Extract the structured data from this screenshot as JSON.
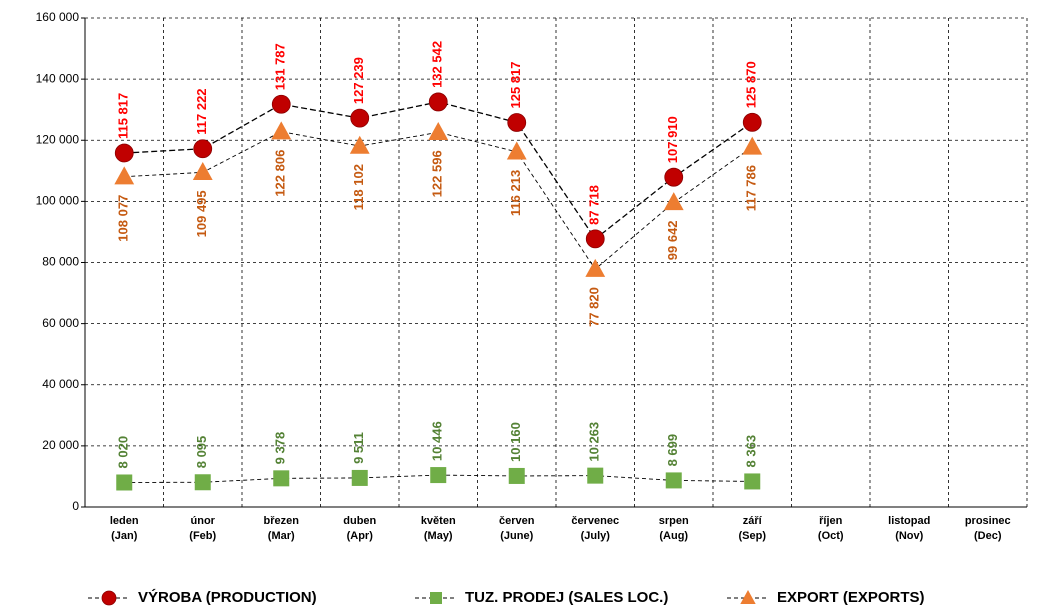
{
  "chart_data": {
    "type": "line",
    "categories": [
      "leden (Jan)",
      "únor (Feb)",
      "březen (Mar)",
      "duben (Apr)",
      "květen (May)",
      "červen (June)",
      "červenec (July)",
      "srpen (Aug)",
      "září (Sep)",
      "říjen (Oct)",
      "listopad (Nov)",
      "prosinec (Dec)"
    ],
    "series": [
      {
        "name": "VÝROBA (PRODUCTION)",
        "color": "#c00000",
        "marker": "circle",
        "values": [
          115817,
          117222,
          131787,
          127239,
          132542,
          125817,
          87718,
          107910,
          125870,
          null,
          null,
          null
        ],
        "value_labels": [
          "115 817",
          "117 222",
          "131 787",
          "127 239",
          "132 542",
          "125 817",
          "87 718",
          "107 910",
          "125 870",
          null,
          null,
          null
        ]
      },
      {
        "name": "TUZ. PRODEJ (SALES LOC.)",
        "color": "#70ad47",
        "marker": "square",
        "values": [
          8020,
          8095,
          9378,
          9511,
          10446,
          10160,
          10263,
          8699,
          8363,
          null,
          null,
          null
        ],
        "value_labels": [
          "8 020",
          "8 095",
          "9 378",
          "9 511",
          "10 446",
          "10 160",
          "10 263",
          "8 699",
          "8 363",
          null,
          null,
          null
        ]
      },
      {
        "name": "EXPORT (EXPORTS)",
        "color": "#ed7d31",
        "marker": "triangle",
        "values": [
          108077,
          109495,
          122806,
          118102,
          122596,
          116213,
          77820,
          99642,
          117786,
          null,
          null,
          null
        ],
        "value_labels": [
          "108 077",
          "109 495",
          "122 806",
          "118 102",
          "122 596",
          "116 213",
          "77 820",
          "99 642",
          "117 786",
          null,
          null,
          null
        ]
      }
    ],
    "ylim": [
      0,
      160000
    ],
    "yticks": [
      0,
      {
        "value": 20000,
        "label": "20 000"
      },
      {
        "value": 40000,
        "label": "40 000"
      },
      {
        "value": 60000,
        "label": "60 000"
      },
      {
        "value": 80000,
        "label": "80 000"
      },
      {
        "value": 100000,
        "label": "100 000"
      },
      {
        "value": 120000,
        "label": "120 000"
      },
      {
        "value": 140000,
        "label": "140 000"
      },
      {
        "value": 160000,
        "label": "160 000"
      }
    ],
    "grid": true,
    "legend": "bottom"
  }
}
